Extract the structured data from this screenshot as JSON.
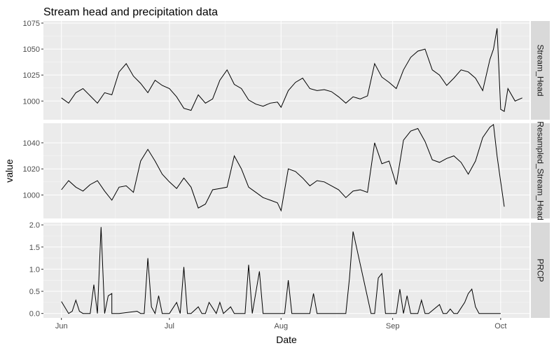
{
  "chart_data": {
    "type": "line",
    "title": "Stream head and precipitation data",
    "xlabel": "Date",
    "ylabel": "value",
    "grid": true,
    "colors": {
      "panel_bg": "#EBEBEB",
      "grid_major": "#FFFFFF",
      "strip_bg": "#D9D9D9",
      "line": "#000000",
      "tick_text": "#4D4D4D"
    },
    "x_axis": {
      "unit": "date",
      "range": [
        "2016-05-27",
        "2016-10-09"
      ],
      "ticks": [
        {
          "date": "2016-06-01",
          "label": "Jun"
        },
        {
          "date": "2016-07-01",
          "label": "Jul"
        },
        {
          "date": "2016-08-01",
          "label": "Aug"
        },
        {
          "date": "2016-09-01",
          "label": "Sep"
        },
        {
          "date": "2016-10-01",
          "label": "Oct"
        }
      ]
    },
    "panels": [
      {
        "strip_label": "Stream_Head",
        "ylim": [
          982,
          1077
        ],
        "yticks": [
          1000,
          1025,
          1050,
          1075
        ],
        "series": {
          "x": [
            "2016-06-01",
            "2016-06-03",
            "2016-06-05",
            "2016-06-07",
            "2016-06-09",
            "2016-06-11",
            "2016-06-13",
            "2016-06-15",
            "2016-06-17",
            "2016-06-19",
            "2016-06-21",
            "2016-06-23",
            "2016-06-25",
            "2016-06-27",
            "2016-06-29",
            "2016-07-01",
            "2016-07-03",
            "2016-07-05",
            "2016-07-07",
            "2016-07-09",
            "2016-07-11",
            "2016-07-13",
            "2016-07-15",
            "2016-07-17",
            "2016-07-19",
            "2016-07-21",
            "2016-07-23",
            "2016-07-25",
            "2016-07-27",
            "2016-07-29",
            "2016-07-31",
            "2016-08-01",
            "2016-08-03",
            "2016-08-05",
            "2016-08-07",
            "2016-08-09",
            "2016-08-11",
            "2016-08-13",
            "2016-08-15",
            "2016-08-17",
            "2016-08-19",
            "2016-08-21",
            "2016-08-23",
            "2016-08-25",
            "2016-08-27",
            "2016-08-29",
            "2016-08-31",
            "2016-09-02",
            "2016-09-04",
            "2016-09-06",
            "2016-09-08",
            "2016-09-10",
            "2016-09-12",
            "2016-09-14",
            "2016-09-16",
            "2016-09-18",
            "2016-09-20",
            "2016-09-22",
            "2016-09-24",
            "2016-09-26",
            "2016-09-28",
            "2016-09-29",
            "2016-09-30",
            "2016-10-01",
            "2016-10-02",
            "2016-10-03",
            "2016-10-05",
            "2016-10-07"
          ],
          "y": [
            1003,
            998,
            1008,
            1012,
            1005,
            998,
            1008,
            1006,
            1028,
            1036,
            1024,
            1017,
            1008,
            1020,
            1015,
            1012,
            1004,
            993,
            991,
            1006,
            998,
            1002,
            1020,
            1030,
            1016,
            1012,
            1001,
            997,
            995,
            998,
            999,
            994,
            1010,
            1018,
            1022,
            1012,
            1010,
            1011,
            1009,
            1004,
            998,
            1004,
            1002,
            1005,
            1036,
            1023,
            1018,
            1012,
            1030,
            1042,
            1048,
            1050,
            1030,
            1025,
            1015,
            1022,
            1030,
            1028,
            1022,
            1010,
            1040,
            1050,
            1070,
            992,
            990,
            1012,
            1000,
            1003
          ]
        }
      },
      {
        "strip_label": "Resampled_Stream_Head",
        "ylim": [
          982,
          1055
        ],
        "yticks": [
          1000,
          1020,
          1040
        ],
        "series": {
          "x": [
            "2016-06-01",
            "2016-06-03",
            "2016-06-05",
            "2016-06-07",
            "2016-06-09",
            "2016-06-11",
            "2016-06-13",
            "2016-06-15",
            "2016-06-17",
            "2016-06-19",
            "2016-06-21",
            "2016-06-23",
            "2016-06-25",
            "2016-06-27",
            "2016-06-29",
            "2016-07-01",
            "2016-07-03",
            "2016-07-05",
            "2016-07-07",
            "2016-07-09",
            "2016-07-11",
            "2016-07-13",
            "2016-07-15",
            "2016-07-17",
            "2016-07-19",
            "2016-07-21",
            "2016-07-23",
            "2016-07-25",
            "2016-07-27",
            "2016-07-29",
            "2016-07-31",
            "2016-08-01",
            "2016-08-03",
            "2016-08-05",
            "2016-08-07",
            "2016-08-09",
            "2016-08-11",
            "2016-08-13",
            "2016-08-15",
            "2016-08-17",
            "2016-08-19",
            "2016-08-21",
            "2016-08-23",
            "2016-08-25",
            "2016-08-27",
            "2016-08-29",
            "2016-08-31",
            "2016-09-02",
            "2016-09-04",
            "2016-09-06",
            "2016-09-08",
            "2016-09-10",
            "2016-09-12",
            "2016-09-14",
            "2016-09-16",
            "2016-09-18",
            "2016-09-20",
            "2016-09-22",
            "2016-09-24",
            "2016-09-26",
            "2016-09-28",
            "2016-09-29",
            "2016-09-30",
            "2016-10-01",
            "2016-10-02"
          ],
          "y": [
            1004,
            1011,
            1006,
            1003,
            1008,
            1011,
            1003,
            996,
            1006,
            1007,
            1002,
            1026,
            1035,
            1026,
            1016,
            1010,
            1005,
            1013,
            1006,
            990,
            993,
            1004,
            1005,
            1006,
            1030,
            1020,
            1006,
            1002,
            998,
            996,
            994,
            988,
            1020,
            1018,
            1013,
            1007,
            1011,
            1010,
            1007,
            1004,
            998,
            1003,
            1004,
            1002,
            1040,
            1024,
            1026,
            1008,
            1042,
            1049,
            1051,
            1041,
            1027,
            1025,
            1028,
            1030,
            1025,
            1016,
            1026,
            1044,
            1052,
            1054,
            1030,
            1010,
            991
          ]
        }
      },
      {
        "strip_label": "PRCP",
        "ylim": [
          -0.1,
          2.05
        ],
        "yticks": [
          0.0,
          0.5,
          1.0,
          1.5,
          2.0
        ],
        "series": {
          "x": [
            "2016-06-01",
            "2016-06-03",
            "2016-06-04",
            "2016-06-05",
            "2016-06-06",
            "2016-06-07",
            "2016-06-08",
            "2016-06-09",
            "2016-06-10",
            "2016-06-11",
            "2016-06-11",
            "2016-06-12",
            "2016-06-13",
            "2016-06-14",
            "2016-06-15",
            "2016-06-15",
            "2016-06-16",
            "2016-06-17",
            "2016-06-22",
            "2016-06-23",
            "2016-06-24",
            "2016-06-25",
            "2016-06-26",
            "2016-06-27",
            "2016-06-28",
            "2016-06-29",
            "2016-06-30",
            "2016-07-01",
            "2016-07-03",
            "2016-07-04",
            "2016-07-05",
            "2016-07-06",
            "2016-07-07",
            "2016-07-09",
            "2016-07-10",
            "2016-07-11",
            "2016-07-12",
            "2016-07-14",
            "2016-07-15",
            "2016-07-16",
            "2016-07-18",
            "2016-07-19",
            "2016-07-20",
            "2016-07-22",
            "2016-07-23",
            "2016-07-24",
            "2016-07-26",
            "2016-07-27",
            "2016-07-28",
            "2016-08-01",
            "2016-08-02",
            "2016-08-03",
            "2016-08-04",
            "2016-08-05",
            "2016-08-06",
            "2016-08-09",
            "2016-08-10",
            "2016-08-11",
            "2016-08-12",
            "2016-08-13",
            "2016-08-19",
            "2016-08-20",
            "2016-08-21",
            "2016-08-26",
            "2016-08-27",
            "2016-08-28",
            "2016-08-29",
            "2016-08-30",
            "2016-09-02",
            "2016-09-03",
            "2016-09-04",
            "2016-09-05",
            "2016-09-06",
            "2016-09-07",
            "2016-09-08",
            "2016-09-09",
            "2016-09-10",
            "2016-09-11",
            "2016-09-14",
            "2016-09-15",
            "2016-09-16",
            "2016-09-17",
            "2016-09-18",
            "2016-09-19",
            "2016-09-21",
            "2016-09-22",
            "2016-09-23",
            "2016-09-24",
            "2016-09-25",
            "2016-09-26",
            "2016-09-27",
            "2016-09-29",
            "2016-09-30",
            "2016-10-01"
          ],
          "y": [
            0.27,
            0.0,
            0.05,
            0.3,
            0.05,
            0.0,
            0.0,
            0.0,
            0.65,
            0.0,
            0.0,
            1.95,
            0.0,
            0.4,
            0.45,
            0.0,
            0.0,
            0.0,
            0.05,
            0.0,
            0.0,
            1.25,
            0.15,
            0.0,
            0.4,
            0.0,
            0.0,
            0.0,
            0.25,
            0.0,
            1.05,
            0.0,
            0.0,
            0.15,
            0.0,
            0.0,
            0.25,
            0.0,
            0.25,
            0.0,
            0.15,
            0.0,
            0.0,
            0.0,
            1.1,
            0.0,
            0.95,
            0.0,
            0.0,
            0.0,
            0.0,
            0.75,
            0.0,
            0.0,
            0.0,
            0.0,
            0.45,
            0.0,
            0.0,
            0.0,
            0.0,
            0.8,
            1.85,
            0.0,
            0.0,
            0.8,
            0.9,
            0.0,
            0.0,
            0.55,
            0.0,
            0.4,
            0.0,
            0.0,
            0.0,
            0.3,
            0.0,
            0.0,
            0.2,
            0.0,
            0.0,
            0.1,
            0.0,
            0.0,
            0.25,
            0.45,
            0.55,
            0.15,
            0.0,
            0.0,
            0.0,
            0.0,
            0.0,
            0.0
          ]
        }
      }
    ]
  }
}
